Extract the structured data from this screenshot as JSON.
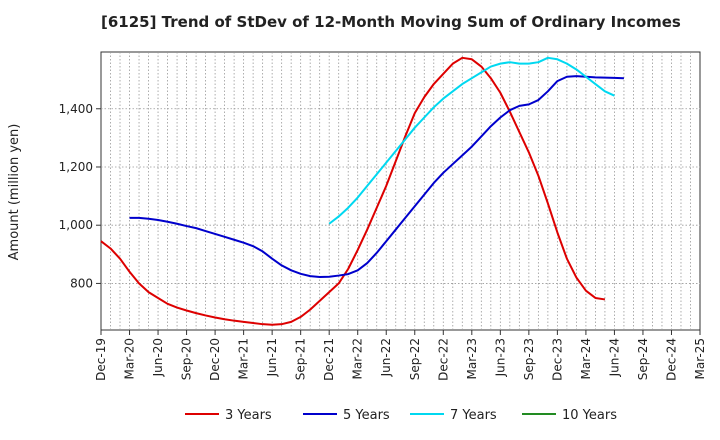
{
  "chart_data": {
    "type": "line",
    "title": "[6125]  Trend of StDev of 12-Month Moving Sum of Ordinary Incomes",
    "ylabel": "Amount (million yen)",
    "xlabel": "",
    "ylim": [
      640,
      1595
    ],
    "yticks": [
      800,
      1000,
      1200,
      1400
    ],
    "ytick_labels": [
      "800",
      "1,000",
      "1,200",
      "1,400"
    ],
    "xticks": [
      "Dec-19",
      "Mar-20",
      "Jun-20",
      "Sep-20",
      "Dec-20",
      "Mar-21",
      "Jun-21",
      "Sep-21",
      "Dec-21",
      "Mar-22",
      "Jun-22",
      "Sep-22",
      "Dec-22",
      "Mar-23",
      "Jun-23",
      "Sep-23",
      "Dec-23",
      "Mar-24",
      "Jun-24",
      "Sep-24",
      "Dec-24",
      "Mar-25"
    ],
    "grid": true,
    "legend_position": "bottom",
    "series": [
      {
        "name": "3 Years",
        "color": "#dd0000",
        "start": "Dec-19",
        "values": [
          945,
          920,
          885,
          840,
          800,
          770,
          750,
          730,
          717,
          707,
          698,
          690,
          683,
          677,
          672,
          668,
          664,
          660,
          658,
          660,
          668,
          685,
          710,
          740,
          770,
          800,
          850,
          915,
          985,
          1060,
          1135,
          1220,
          1305,
          1385,
          1440,
          1485,
          1520,
          1555,
          1575,
          1570,
          1545,
          1505,
          1455,
          1390,
          1320,
          1250,
          1170,
          1075,
          975,
          885,
          820,
          775,
          750,
          745
        ]
      },
      {
        "name": "5 Years",
        "color": "#0000cc",
        "start": "Mar-20",
        "values": [
          1025,
          1025,
          1022,
          1018,
          1012,
          1005,
          997,
          990,
          980,
          970,
          960,
          950,
          940,
          928,
          910,
          885,
          862,
          845,
          833,
          825,
          822,
          823,
          827,
          832,
          845,
          870,
          905,
          945,
          985,
          1025,
          1065,
          1105,
          1145,
          1180,
          1210,
          1240,
          1270,
          1305,
          1340,
          1370,
          1395,
          1410,
          1415,
          1430,
          1460,
          1495,
          1510,
          1512,
          1510,
          1508,
          1507,
          1506,
          1505
        ]
      },
      {
        "name": "7 Years",
        "color": "#00d8f0",
        "start": "Dec-21",
        "values": [
          1005,
          1030,
          1060,
          1095,
          1135,
          1175,
          1215,
          1255,
          1295,
          1335,
          1370,
          1405,
          1435,
          1460,
          1485,
          1505,
          1525,
          1545,
          1555,
          1560,
          1555,
          1555,
          1560,
          1575,
          1570,
          1555,
          1535,
          1510,
          1485,
          1460,
          1445
        ]
      },
      {
        "name": "10 Years",
        "color": "#228b22",
        "start": "",
        "values": []
      }
    ]
  }
}
